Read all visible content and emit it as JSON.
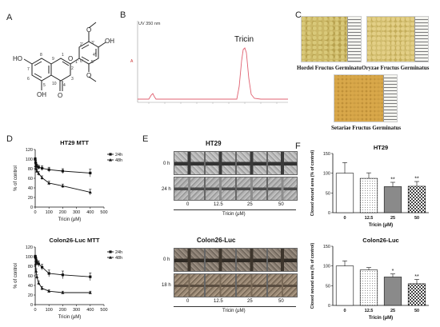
{
  "panels": {
    "A": "A",
    "B": "B",
    "C": "C",
    "D": "D",
    "E": "E",
    "F": "F"
  },
  "structure": {
    "atoms": [
      "8",
      "1",
      "2'",
      "3'",
      "4'",
      "5'",
      "6'",
      "2",
      "3",
      "4",
      "10",
      "5",
      "6",
      "7",
      "9",
      "1'"
    ],
    "groups": [
      "HO",
      "OH",
      "OH",
      "O",
      "O",
      "O",
      "O",
      "O"
    ]
  },
  "chromatogram": {
    "uv_label": "UV 350 nm",
    "peak_label": "Tricin",
    "y_axis_mark": "A",
    "line_color": "#e06070"
  },
  "photos": {
    "hordei": "Hordei Fructus Germinatu",
    "oryzae": "Oryzae Fructus Germinatus",
    "setariae": "Setariae Fructus Germinatus"
  },
  "wound_healing": {
    "ht29_title": "HT29",
    "colon_title": "Colon26-Luc",
    "ht29_rows": [
      "0 h",
      "24 h"
    ],
    "colon_rows": [
      "0 h",
      "18 h"
    ],
    "concentrations": [
      "0",
      "12.5",
      "25",
      "50"
    ],
    "xlabel": "Tricin (μM)"
  },
  "chart_data": [
    {
      "type": "line",
      "title": "HT29 MTT",
      "xlabel": "Tricin (μM)",
      "ylabel": "% of control",
      "xlim": [
        0,
        500
      ],
      "ylim": [
        0,
        120
      ],
      "xticks": [
        "0",
        "100",
        "200",
        "300",
        "400",
        "500"
      ],
      "yticks": [
        "0",
        "20",
        "40",
        "60",
        "80",
        "100",
        "120"
      ],
      "legend_position": "top-right",
      "series": [
        {
          "name": "24h",
          "marker": "square",
          "x": [
            0,
            3.125,
            6.25,
            12.5,
            25,
            50,
            100,
            200,
            400
          ],
          "y": [
            100,
            93,
            88,
            85,
            83,
            81,
            78,
            75,
            71
          ],
          "err": [
            3,
            4,
            4,
            4,
            4,
            5,
            5,
            5,
            8
          ]
        },
        {
          "name": "48h",
          "marker": "triangle",
          "x": [
            0,
            3.125,
            6.25,
            12.5,
            25,
            50,
            100,
            200,
            400
          ],
          "y": [
            100,
            86,
            80,
            75,
            70,
            61,
            50,
            44,
            31
          ],
          "err": [
            3,
            4,
            4,
            4,
            4,
            4,
            4,
            4,
            6
          ]
        }
      ]
    },
    {
      "type": "line",
      "title": "Colon26-Luc MTT",
      "xlabel": "Tricin (μM)",
      "ylabel": "% of control",
      "xlim": [
        0,
        500
      ],
      "ylim": [
        0,
        120
      ],
      "xticks": [
        "0",
        "100",
        "200",
        "300",
        "400",
        "500"
      ],
      "yticks": [
        "0",
        "20",
        "40",
        "60",
        "80",
        "100",
        "120"
      ],
      "legend_position": "top-right",
      "series": [
        {
          "name": "24h",
          "marker": "square",
          "x": [
            0,
            3.125,
            6.25,
            12.5,
            25,
            50,
            100,
            200,
            400
          ],
          "y": [
            100,
            98,
            93,
            88,
            85,
            78,
            65,
            62,
            58
          ],
          "err": [
            3,
            4,
            4,
            5,
            6,
            6,
            7,
            8,
            8
          ]
        },
        {
          "name": "48h",
          "marker": "triangle",
          "x": [
            0,
            3.125,
            6.25,
            12.5,
            25,
            50,
            100,
            200,
            400
          ],
          "y": [
            100,
            85,
            70,
            58,
            45,
            34,
            28,
            25,
            25
          ],
          "err": [
            3,
            4,
            4,
            4,
            4,
            4,
            3,
            3,
            3
          ]
        }
      ]
    },
    {
      "type": "bar",
      "title": "HT29",
      "xlabel": "Tricin (μM)",
      "ylabel": "Closed wound area (% of control)",
      "ylim": [
        0,
        150
      ],
      "yticks": [
        "0",
        "50",
        "100",
        "150"
      ],
      "categories": [
        "0",
        "12.5",
        "25",
        "50"
      ],
      "values": [
        100,
        87,
        66,
        67
      ],
      "errors": [
        27,
        14,
        11,
        12
      ],
      "annotations": [
        "",
        "",
        "**",
        "**"
      ],
      "fills": [
        "white",
        "dotted",
        "gray",
        "checker"
      ]
    },
    {
      "type": "bar",
      "title": "Colon26-Luc",
      "xlabel": "Tricin (μM)",
      "ylabel": "Closed wound area (% of control)",
      "ylim": [
        0,
        150
      ],
      "yticks": [
        "0",
        "50",
        "100",
        "150"
      ],
      "categories": [
        "0",
        "12.5",
        "25",
        "50"
      ],
      "values": [
        100,
        90,
        72,
        55
      ],
      "errors": [
        13,
        6,
        8,
        11
      ],
      "annotations": [
        "",
        "",
        "*",
        "**"
      ],
      "fills": [
        "white",
        "dotted",
        "gray",
        "checker"
      ]
    }
  ]
}
